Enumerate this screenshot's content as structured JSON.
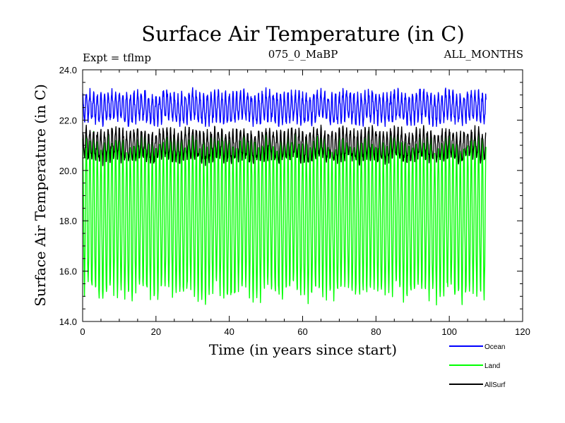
{
  "chart_data": {
    "type": "line",
    "title": "Surface Air Temperature (in C)",
    "subtitle_left": "Expt = tflmp",
    "subtitle_center": "075_0_MaBP",
    "subtitle_right": "ALL_MONTHS",
    "xlabel": "Time (in years since start)",
    "ylabel": "Surface Air Temperature (in C)",
    "xlim": [
      0,
      120
    ],
    "ylim": [
      14.0,
      24.0
    ],
    "x_ticks": [
      "0",
      "20",
      "40",
      "60",
      "80",
      "100",
      "120"
    ],
    "y_ticks": [
      "14.0",
      "16.0",
      "18.0",
      "20.0",
      "22.0",
      "24.0"
    ],
    "x_range": [
      0,
      110
    ],
    "series": [
      {
        "name": "Ocean",
        "color": "#0000ff",
        "mean": 22.5,
        "amplitude": 0.55,
        "noise": 0.18,
        "min": 21.75,
        "max": 23.4
      },
      {
        "name": "Land",
        "color": "#00ff00",
        "mean": 18.15,
        "amplitude": 3.0,
        "noise": 0.35,
        "min": 14.4,
        "max": 21.8
      },
      {
        "name": "AllSurf",
        "color": "#000000",
        "mean": 21.0,
        "amplitude": 0.55,
        "noise": 0.18,
        "min": 20.1,
        "max": 21.8
      }
    ],
    "legend": [
      "Ocean",
      "Land",
      "AllSurf"
    ]
  }
}
